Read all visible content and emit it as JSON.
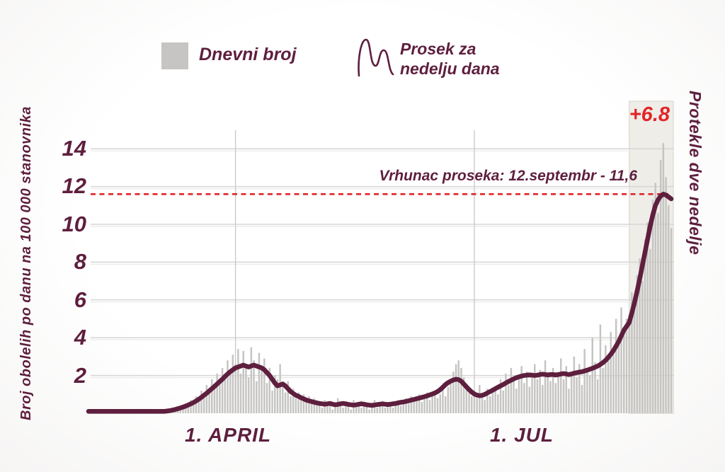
{
  "colors": {
    "maroon": "#5e1f3e",
    "red": "#e22528",
    "bar": "#c6c5c3",
    "highlight_bg": "#efede8",
    "highlight_border": "#e0ded7",
    "grid": "#d7d5d5",
    "grid_echo": "#ecebea",
    "vgrid": "#c9c7c7"
  },
  "legend": {
    "daily_label": "Dnevni broj",
    "avg_label": "Prosek za\nnedelju  dana",
    "avg_icon": "squiggle-line-icon"
  },
  "y_axis": {
    "label": "Broj obolelih po danu na 100 000 stanovnika",
    "ticks": [
      "14",
      "12",
      "10",
      "8",
      "6",
      "4",
      "2"
    ]
  },
  "x_axis": {
    "label_april": "1. APRIL",
    "label_jul": "1. JUL"
  },
  "right_label": "Protekle dve nedelje",
  "annotation": {
    "text": "Vrhunac proseka: 12.septembr - 11,6"
  },
  "badge": {
    "text": "+6.8"
  },
  "chart_data": {
    "type": "bar+line",
    "title": "",
    "xlabel": "",
    "ylabel": "Broj obolelih po danu na 100 000 stanovnika",
    "ylim": [
      0,
      15
    ],
    "y_ticks": [
      2,
      4,
      6,
      8,
      10,
      12,
      14
    ],
    "grid": "on",
    "legend_position": "top",
    "days": 223,
    "x_tick_positions_day": [
      56,
      147
    ],
    "x_tick_labels": [
      "1. APRIL",
      "1. JUL"
    ],
    "peak_line_value": 11.6,
    "peak_annotation": "Vrhunac proseka: 12.septembr - 11,6",
    "two_week_change": "+6.8",
    "highlight_start_day": 206,
    "series": [
      {
        "name": "Dnevni broj",
        "kind": "bar",
        "values": [
          0,
          0,
          0,
          0,
          0,
          0,
          0,
          0,
          0,
          0,
          0,
          0,
          0,
          0,
          0,
          0,
          0,
          0,
          0,
          0,
          0,
          0,
          0,
          0,
          0,
          0,
          0,
          0,
          0,
          0,
          0.1,
          0.2,
          0.1,
          0.3,
          0.2,
          0.4,
          0.3,
          0.5,
          0.4,
          0.7,
          0.5,
          0.9,
          0.8,
          1.2,
          1.0,
          1.5,
          1.3,
          1.8,
          1.5,
          2.1,
          1.7,
          2.4,
          2.0,
          2.8,
          2.2,
          3.1,
          2.6,
          3.4,
          2.1,
          3.3,
          2.5,
          1.9,
          3.5,
          2.8,
          1.7,
          3.2,
          2.3,
          2.9,
          1.6,
          2.4,
          1.2,
          2.0,
          1.8,
          2.6,
          1.4,
          1.1,
          1.7,
          0.9,
          1.3,
          0.8,
          1.1,
          0.7,
          1.0,
          0.6,
          0.9,
          0.5,
          0.8,
          0.6,
          0.5,
          0.3,
          0.7,
          0.4,
          0.6,
          0.2,
          0.5,
          0.8,
          0.4,
          0.3,
          0.6,
          0.5,
          0.2,
          0.7,
          0.4,
          0.5,
          0.3,
          0.6,
          0.4,
          0.2,
          0.5,
          0.7,
          0.3,
          0.4,
          0.6,
          0.3,
          0.5,
          0.4,
          0.3,
          0.5,
          0.7,
          0.4,
          0.6,
          0.8,
          0.5,
          0.9,
          0.6,
          0.7,
          1.0,
          0.6,
          0.8,
          1.1,
          0.7,
          0.9,
          1.2,
          0.8,
          1.0,
          1.3,
          0.9,
          1.4,
          1.8,
          2.2,
          2.6,
          2.8,
          2.4,
          1.9,
          1.5,
          1.1,
          0.9,
          1.2,
          0.8,
          1.5,
          1.0,
          0.7,
          1.3,
          0.9,
          1.1,
          1.4,
          1.0,
          1.8,
          1.2,
          2.1,
          1.5,
          2.4,
          1.7,
          1.3,
          2.0,
          2.5,
          1.6,
          2.2,
          1.4,
          1.9,
          2.6,
          1.8,
          2.3,
          1.5,
          2.8,
          2.0,
          1.7,
          2.4,
          1.6,
          2.1,
          2.9,
          1.8,
          2.5,
          1.3,
          2.2,
          3.0,
          1.9,
          2.6,
          1.5,
          3.4,
          2.3,
          2.0,
          4.0,
          2.7,
          1.8,
          4.7,
          2.4,
          3.6,
          2.8,
          4.3,
          3.2,
          5.0,
          3.9,
          5.6,
          4.5,
          5.0,
          5.2,
          6.4,
          5.8,
          7.3,
          8.2,
          7.0,
          9.2,
          10.1,
          8.7,
          11.3,
          12.2,
          10.6,
          13.4,
          14.3,
          12.5,
          11.0,
          9.8
        ]
      },
      {
        "name": "Prosek za nedelju dana",
        "kind": "line",
        "values": [
          0.1,
          0.1,
          0.1,
          0.1,
          0.1,
          0.1,
          0.1,
          0.1,
          0.1,
          0.1,
          0.1,
          0.1,
          0.1,
          0.1,
          0.1,
          0.1,
          0.1,
          0.1,
          0.1,
          0.1,
          0.1,
          0.1,
          0.1,
          0.1,
          0.1,
          0.1,
          0.1,
          0.1,
          0.1,
          0.1,
          0.12,
          0.14,
          0.17,
          0.2,
          0.24,
          0.28,
          0.33,
          0.38,
          0.44,
          0.5,
          0.57,
          0.65,
          0.74,
          0.84,
          0.95,
          1.06,
          1.18,
          1.3,
          1.42,
          1.55,
          1.68,
          1.8,
          1.95,
          2.08,
          2.2,
          2.3,
          2.4,
          2.45,
          2.5,
          2.55,
          2.5,
          2.45,
          2.5,
          2.55,
          2.5,
          2.45,
          2.4,
          2.3,
          2.15,
          2.0,
          1.8,
          1.6,
          1.45,
          1.5,
          1.55,
          1.45,
          1.3,
          1.15,
          1.05,
          0.95,
          0.9,
          0.82,
          0.76,
          0.7,
          0.66,
          0.62,
          0.58,
          0.55,
          0.52,
          0.5,
          0.48,
          0.5,
          0.52,
          0.48,
          0.45,
          0.47,
          0.5,
          0.52,
          0.5,
          0.47,
          0.45,
          0.43,
          0.45,
          0.48,
          0.5,
          0.48,
          0.45,
          0.43,
          0.42,
          0.44,
          0.46,
          0.48,
          0.5,
          0.48,
          0.46,
          0.48,
          0.5,
          0.52,
          0.55,
          0.58,
          0.6,
          0.63,
          0.66,
          0.7,
          0.73,
          0.77,
          0.8,
          0.84,
          0.88,
          0.92,
          0.97,
          1.02,
          1.08,
          1.15,
          1.25,
          1.38,
          1.52,
          1.62,
          1.7,
          1.76,
          1.8,
          1.78,
          1.7,
          1.55,
          1.4,
          1.25,
          1.12,
          1.02,
          0.96,
          0.93,
          0.95,
          1.0,
          1.08,
          1.15,
          1.22,
          1.3,
          1.38,
          1.45,
          1.52,
          1.6,
          1.68,
          1.75,
          1.82,
          1.88,
          1.93,
          1.97,
          2.0,
          2.02,
          2.03,
          2.02,
          2.0,
          2.02,
          2.05,
          2.07,
          2.05,
          2.03,
          2.05,
          2.05,
          2.03,
          2.05,
          2.08,
          2.1,
          2.08,
          2.05,
          2.08,
          2.12,
          2.15,
          2.18,
          2.2,
          2.24,
          2.28,
          2.33,
          2.38,
          2.44,
          2.5,
          2.58,
          2.68,
          2.8,
          2.95,
          3.12,
          3.32,
          3.55,
          3.8,
          4.1,
          4.4,
          4.6,
          4.8,
          5.3,
          5.85,
          6.45,
          7.1,
          7.8,
          8.5,
          9.2,
          9.9,
          10.5,
          11.0,
          11.3,
          11.5,
          11.6,
          11.55,
          11.45,
          11.35
        ]
      }
    ]
  }
}
